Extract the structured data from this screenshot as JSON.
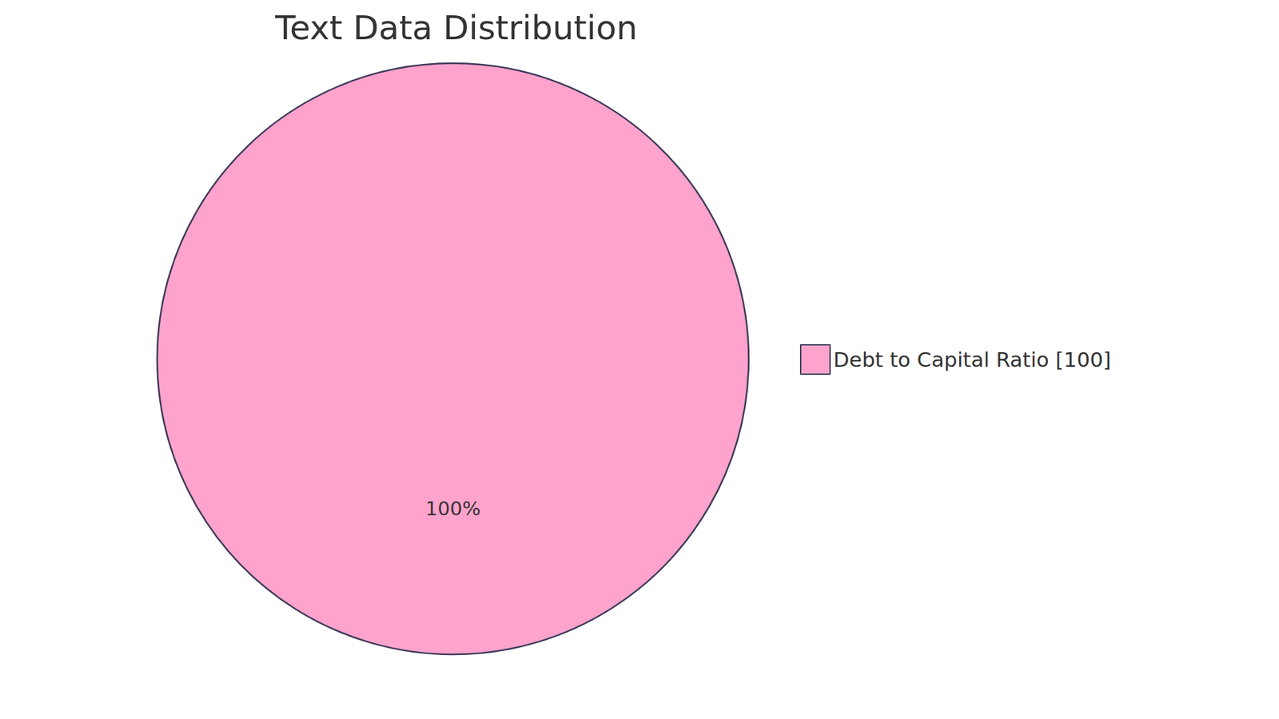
{
  "chart_data": {
    "type": "pie",
    "title": "Text Data Distribution",
    "categories": [
      "Debt to Capital Ratio [100]"
    ],
    "values": [
      100
    ],
    "value_labels": [
      "100%"
    ],
    "colors": [
      "#fda3cc"
    ],
    "data_labels": true,
    "legend": "right"
  }
}
